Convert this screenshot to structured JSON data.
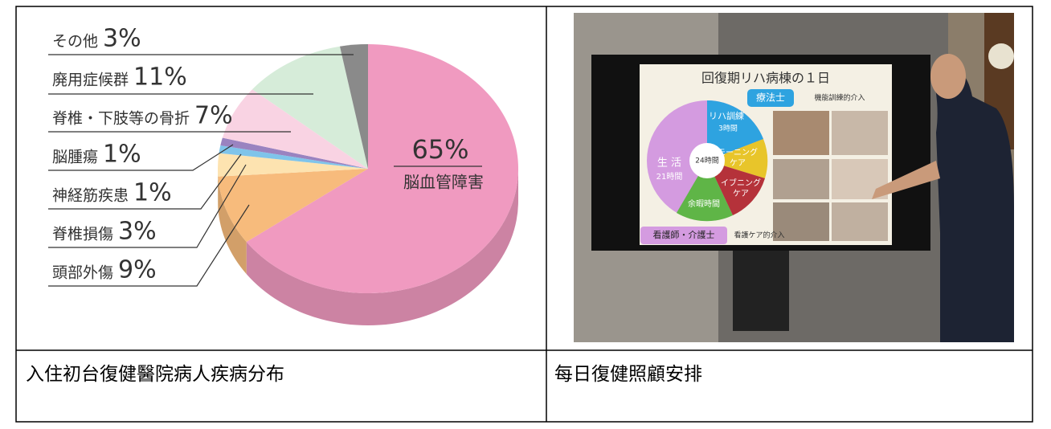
{
  "chart_data": {
    "type": "pie",
    "categories": [
      "脳血管障害",
      "頭部外傷",
      "脊椎損傷",
      "神経筋疾患",
      "脳腫瘍",
      "脊椎・下肢等の骨折",
      "廃用症候群",
      "その他"
    ],
    "values": [
      65,
      9,
      3,
      1,
      1,
      7,
      11,
      3
    ],
    "value_labels": [
      "65%",
      "9%",
      "3%",
      "1%",
      "1%",
      "7%",
      "11%",
      "3%"
    ],
    "colors": [
      "#f09ac0",
      "#f7bb7c",
      "#fde3b0",
      "#7fc4ea",
      "#9a83c0",
      "#f9d3e3",
      "#d6ecd9",
      "#8a8a8a"
    ]
  },
  "photo": {
    "texts": [
      "回復期リハ病棟の１日",
      "療法士",
      "機能訓練的介入",
      "リハ訓練",
      "3時間",
      "24時間",
      "生 活",
      "21時間",
      "モーニング",
      "ケア",
      "イブニング",
      "ケア",
      "余暇時間",
      "看護師・介護士",
      "看護ケア的介入"
    ]
  },
  "table": {
    "rows": [
      [
        "入住初台復健醫院病人疾病分布",
        "每日復健照顧安排"
      ]
    ]
  }
}
